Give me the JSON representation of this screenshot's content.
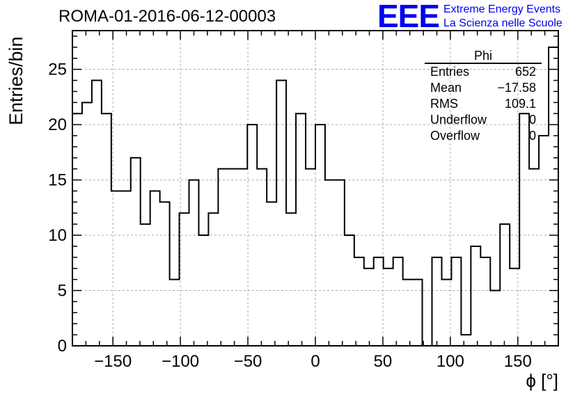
{
  "title": "ROMA-01-2016-06-12-00003",
  "logo": {
    "mark": "EEE",
    "line1": "Extreme Energy Events",
    "line2": "La Scienza nelle Scuole"
  },
  "stats_box": {
    "title": "Phi",
    "rows": [
      {
        "label": "Entries",
        "value": "652"
      },
      {
        "label": "Mean",
        "value": "−17.58"
      },
      {
        "label": "RMS",
        "value": "109.1"
      },
      {
        "label": "Underflow",
        "value": "0"
      },
      {
        "label": "Overflow",
        "value": "0"
      }
    ]
  },
  "chart_data": {
    "type": "bar",
    "histogram": "step",
    "xlabel": "ϕ [°]",
    "ylabel": "Entries/bin",
    "xlim": [
      -180,
      180
    ],
    "ylim": [
      0,
      28.5
    ],
    "bin_width": 7.2,
    "x_ticks": [
      -150,
      -100,
      -50,
      0,
      50,
      100,
      150
    ],
    "x_tick_labels": [
      "−150",
      "−100",
      "−50",
      "0",
      "50",
      "100",
      "150"
    ],
    "y_ticks": [
      0,
      5,
      10,
      15,
      20,
      25
    ],
    "y_tick_labels": [
      "0",
      "5",
      "10",
      "15",
      "20",
      "25"
    ],
    "grid": true,
    "values": [
      21,
      22,
      24,
      21,
      14,
      14,
      17,
      11,
      14,
      13,
      6,
      12,
      15,
      10,
      12,
      16,
      16,
      16,
      20,
      16,
      13,
      24,
      12,
      21,
      16,
      20,
      15,
      15,
      10,
      8,
      7,
      8,
      7,
      8,
      6,
      6,
      0,
      8,
      6,
      8,
      1,
      9,
      8,
      5,
      11,
      7,
      21,
      16,
      19,
      27
    ]
  }
}
